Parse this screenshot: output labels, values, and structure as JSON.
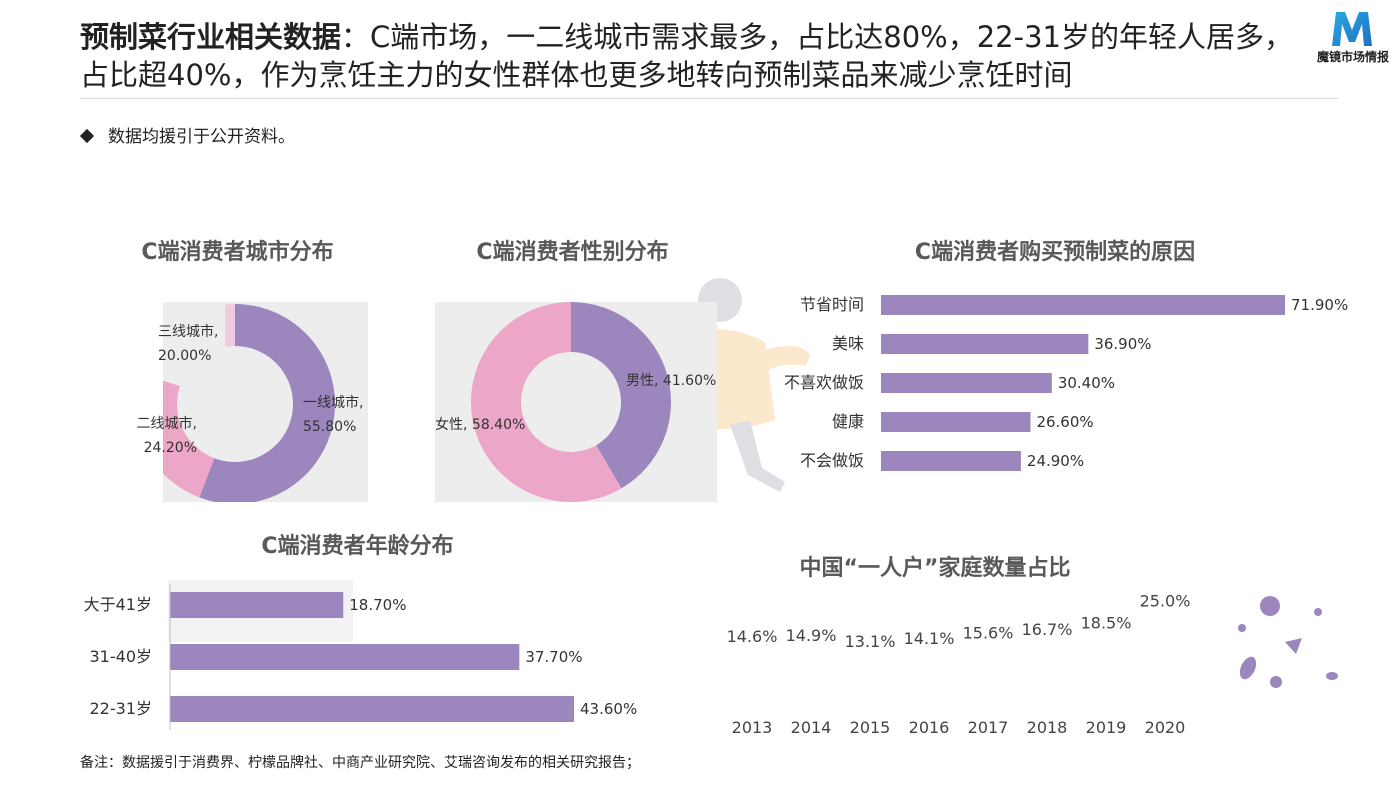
{
  "header": {
    "title_bold": "预制菜行业相关数据",
    "title_rest": "：C端市场，一二线城市需求最多，占比达80%，22-31岁的年轻人居多，占比超40%，作为烹饪主力的女性群体也更多地转向预制菜品来减少烹饪时间",
    "bullet": "数据均援引于公开资料。",
    "logo_text": "魔镜市场情报"
  },
  "footnote": "备注：数据援引于消费界、柠檬品牌社、中商产业研究院、艾瑞咨询发布的相关研究报告；",
  "colors": {
    "purple": "#9b87bd",
    "pink": "#eba6c8",
    "light_pink": "#f1cbe0",
    "grey_bg": "#ededed"
  },
  "chart_data": [
    {
      "type": "pie",
      "title": "C端消费者城市分布",
      "slices": [
        {
          "label": "一线城市,",
          "value": 55.8,
          "display": "55.80%"
        },
        {
          "label": "二线城市,",
          "value": 24.2,
          "display": "24.20%"
        },
        {
          "label": "三线城市,",
          "value": 20.0,
          "display": "20.00%"
        }
      ]
    },
    {
      "type": "pie",
      "title": "C端消费者性别分布",
      "slices": [
        {
          "label": "男性, ",
          "value": 41.6,
          "display": "41.60%"
        },
        {
          "label": "女性, ",
          "value": 58.4,
          "display": "58.40%"
        }
      ]
    },
    {
      "type": "bar",
      "orientation": "horizontal",
      "title": "C端消费者购买预制菜的原因",
      "categories": [
        "节省时间",
        "美味",
        "不喜欢做饭",
        "健康",
        "不会做饭"
      ],
      "values": [
        71.9,
        36.9,
        30.4,
        26.6,
        24.9
      ],
      "value_labels": [
        "71.90%",
        "36.90%",
        "30.40%",
        "26.60%",
        "24.90%"
      ]
    },
    {
      "type": "bar",
      "orientation": "horizontal",
      "title": "C端消费者年龄分布",
      "categories": [
        "大于41岁",
        "31-40岁",
        "22-31岁"
      ],
      "values": [
        18.7,
        37.7,
        43.6
      ],
      "value_labels": [
        "18.70%",
        "37.70%",
        "43.60%"
      ]
    },
    {
      "type": "line",
      "title": "中国“一人户”家庭数量占比",
      "x": [
        "2013",
        "2014",
        "2015",
        "2016",
        "2017",
        "2018",
        "2019",
        "2020"
      ],
      "values": [
        14.6,
        14.9,
        13.1,
        14.1,
        15.6,
        16.7,
        18.5,
        25.0
      ],
      "value_labels": [
        "14.6%",
        "14.9%",
        "13.1%",
        "14.1%",
        "15.6%",
        "16.7%",
        "18.5%",
        "25.0%"
      ]
    }
  ]
}
